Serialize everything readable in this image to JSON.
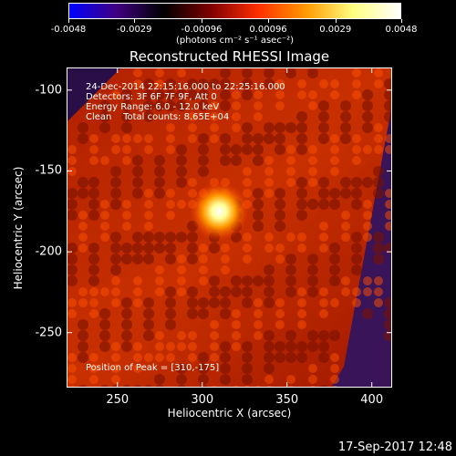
{
  "chart_data": {
    "type": "heatmap",
    "title": "Reconstructed RHESSI Image",
    "xlabel": "Heliocentric X (arcsec)",
    "ylabel": "Heliocentric Y (arcsec)",
    "xlim": [
      220,
      412
    ],
    "ylim": [
      -284,
      -86
    ],
    "xticks": [
      250,
      300,
      350,
      400
    ],
    "yticks": [
      -100,
      -150,
      -200,
      -250
    ],
    "colorbar": {
      "ticks": [
        "-0.0048",
        "-0.0029",
        "-0.00096",
        "0.00096",
        "0.0029",
        "0.0048"
      ],
      "range": [
        -0.0048,
        0.0048
      ],
      "unit_label": "(photons cm⁻² s⁻¹ asec⁻²)",
      "colormap": [
        "#0000ff",
        "#400080",
        "#000000",
        "#800000",
        "#ff3000",
        "#ff9900",
        "#ffff80",
        "#ffffff"
      ]
    },
    "annotations": {
      "time_range": "24-Dec-2014 22:15:16.000 to 22:25:16.000",
      "detectors": "Detectors: 3F 6F 7F 9F, Att 0",
      "energy": "Energy Range: 6.0 - 12.0 keV",
      "clean": "Clean    Total counts: 8.65E+04",
      "peak": "Position of Peak = [310,-175]"
    },
    "peak": {
      "x": 310,
      "y": -175
    }
  },
  "timestamp": "17-Sep-2017 12:48"
}
